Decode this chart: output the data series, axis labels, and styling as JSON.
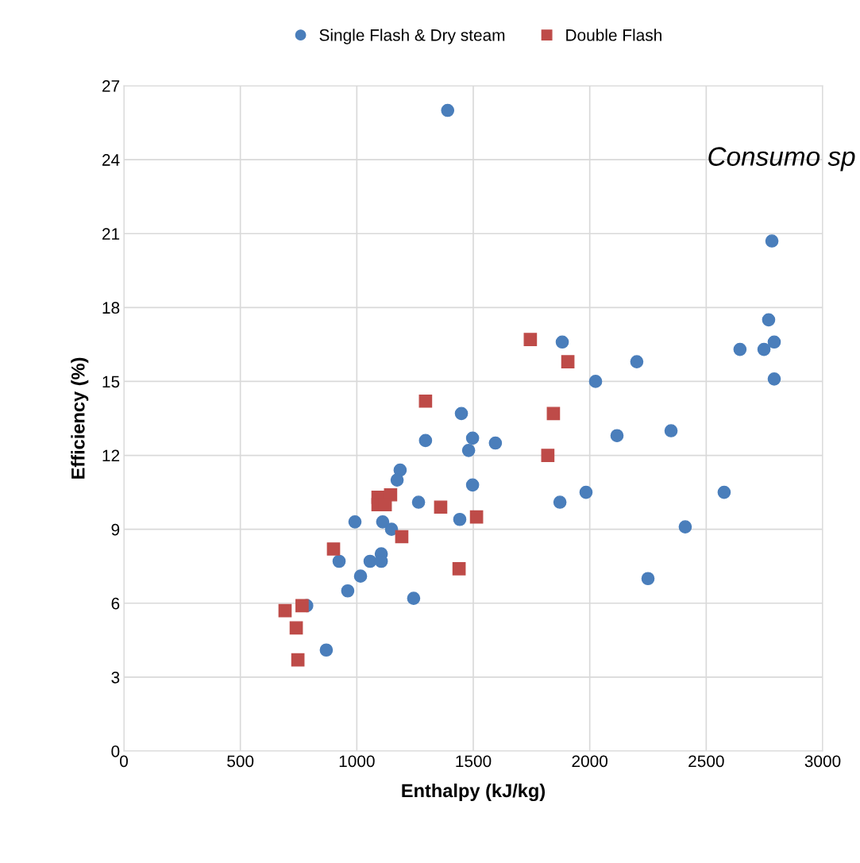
{
  "chart_data": {
    "type": "scatter",
    "xlabel": "Enthalpy (kJ/kg)",
    "ylabel": "Efficiency (%)",
    "xlim": [
      0,
      3000
    ],
    "xticks": [
      0,
      500,
      1000,
      1500,
      2000,
      2500,
      3000
    ],
    "ylim": [
      0,
      27
    ],
    "yticks": [
      0,
      3,
      6,
      9,
      12,
      15,
      18,
      21,
      24,
      27
    ],
    "grid": true,
    "legend": "top",
    "annotations": [
      "Consumo sp"
    ],
    "series": [
      {
        "name": "Single Flash & Dry steam",
        "color": "#4a7ebb",
        "marker": "circle",
        "x": [
          1390,
          2782,
          2768,
          2792,
          2645,
          2748,
          1882,
          2202,
          2025,
          2792,
          1449,
          2349,
          2117,
          1295,
          1497,
          1595,
          1480,
          1186,
          1173,
          1497,
          1265,
          1872,
          1984,
          2577,
          992,
          1111,
          1442,
          1149,
          2410,
          1105,
          924,
          1057,
          1105,
          1016,
          961,
          1244,
          2250,
          785,
          869
        ],
        "values": [
          26.0,
          20.7,
          17.5,
          16.6,
          16.3,
          16.3,
          16.6,
          15.8,
          15.0,
          15.1,
          13.7,
          13.0,
          12.8,
          12.6,
          12.7,
          12.5,
          12.2,
          11.4,
          11.0,
          10.8,
          10.1,
          10.1,
          10.5,
          10.5,
          9.3,
          9.3,
          9.4,
          9.0,
          9.1,
          8.0,
          7.7,
          7.7,
          7.7,
          7.1,
          6.5,
          6.2,
          7.0,
          5.9,
          4.1
        ]
      },
      {
        "name": "Double Flash",
        "color": "#be4b48",
        "marker": "square",
        "x": [
          1745,
          1906,
          1295,
          1844,
          1820,
          1091,
          1145,
          1091,
          1122,
          1360,
          1514,
          1193,
          900,
          1439,
          692,
          765,
          740,
          747
        ],
        "values": [
          16.7,
          15.8,
          14.2,
          13.7,
          12.0,
          10.3,
          10.4,
          10.0,
          10.0,
          9.9,
          9.5,
          8.7,
          8.2,
          7.4,
          5.7,
          5.9,
          5.0,
          3.7
        ]
      }
    ]
  }
}
